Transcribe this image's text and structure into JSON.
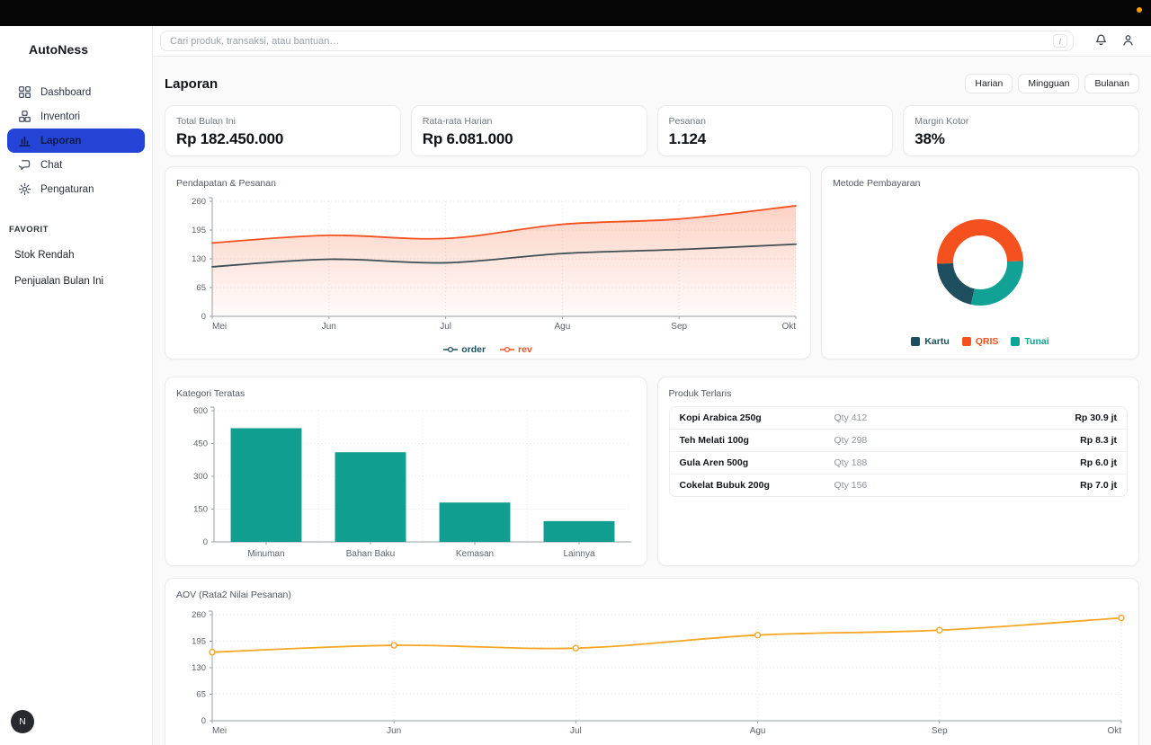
{
  "topbar": {
    "status_dot_color": "#ff9c07"
  },
  "sidebar": {
    "brand": "AutoNess",
    "items": [
      {
        "label": "Dashboard",
        "icon": "dashboard-icon",
        "active": false
      },
      {
        "label": "Inventori",
        "icon": "inventory-icon",
        "active": false
      },
      {
        "label": "Laporan",
        "icon": "report-chart-icon",
        "active": true
      },
      {
        "label": "Chat",
        "icon": "chat-icon",
        "active": false
      },
      {
        "label": "Pengaturan",
        "icon": "gear-icon",
        "active": false
      }
    ],
    "favorites_title": "FAVORIT",
    "favorites": [
      {
        "label": "Stok Rendah"
      },
      {
        "label": "Penjualan Bulan Ini"
      }
    ],
    "avatar_letter": "N"
  },
  "header": {
    "search_placeholder": "Cari produk, transaksi, atau bantuan…",
    "shortcut_key": "/"
  },
  "page": {
    "title": "Laporan",
    "period_buttons": [
      "Harian",
      "Mingguan",
      "Bulanan"
    ]
  },
  "kpis": [
    {
      "label": "Total Bulan Ini",
      "value": "Rp 182.450.000"
    },
    {
      "label": "Rata-rata Harian",
      "value": "Rp 6.081.000"
    },
    {
      "label": "Pesanan",
      "value": "1.124"
    },
    {
      "label": "Margin Kotor",
      "value": "38%"
    }
  ],
  "products": {
    "title": "Produk Terlaris",
    "rows": [
      {
        "name": "Kopi Arabica 250g",
        "qty": "Qty 412",
        "value": "Rp 30.9 jt"
      },
      {
        "name": "Teh Melati 100g",
        "qty": "Qty 298",
        "value": "Rp 8.3 jt"
      },
      {
        "name": "Gula Aren 500g",
        "qty": "Qty 188",
        "value": "Rp 6.0 jt"
      },
      {
        "name": "Cokelat Bubuk 200g",
        "qty": "Qty 156",
        "value": "Rp 7.0 jt"
      }
    ]
  },
  "chart_data": [
    {
      "id": "revenue_orders",
      "type": "area",
      "title": "Pendapatan & Pesanan",
      "x": [
        "Mei",
        "Jun",
        "Jul",
        "Agu",
        "Sep",
        "Okt"
      ],
      "yticks": [
        0,
        65,
        130,
        195,
        260
      ],
      "ylim": [
        0,
        260
      ],
      "grid": true,
      "legend_position": "bottom",
      "series": [
        {
          "name": "order",
          "color": "#1f4e5f",
          "values": [
            112,
            129,
            121,
            142,
            151,
            163
          ],
          "area": false,
          "markers": false
        },
        {
          "name": "rev",
          "color": "#f4511e",
          "values": [
            166,
            183,
            176,
            208,
            220,
            250
          ],
          "area": true,
          "markers": false
        }
      ]
    },
    {
      "id": "payment_methods",
      "type": "pie",
      "title": "Metode Pembayaran",
      "labels": [
        "Kartu",
        "QRIS",
        "Tunai"
      ],
      "values": [
        21,
        50,
        29
      ],
      "colors": [
        "#1f4e5f",
        "#f4511e",
        "#12a195"
      ],
      "donut": true,
      "start_angle_deg": 268,
      "draw_order": [
        1,
        2,
        0
      ],
      "legend_position": "bottom"
    },
    {
      "id": "top_categories",
      "type": "bar",
      "title": "Kategori Teratas",
      "categories": [
        "Minuman",
        "Bahan Baku",
        "Kemasan",
        "Lainnya"
      ],
      "values": [
        520,
        410,
        180,
        95
      ],
      "yticks": [
        0,
        150,
        300,
        450,
        600
      ],
      "ylim": [
        0,
        600
      ],
      "grid": true,
      "color": "#0f9e8f"
    },
    {
      "id": "aov",
      "type": "line",
      "title": "AOV (Rata2 Nilai Pesanan)",
      "x": [
        "Mei",
        "Jun",
        "Jul",
        "Agu",
        "Sep",
        "Okt"
      ],
      "yticks": [
        0,
        65,
        130,
        195,
        260
      ],
      "ylim": [
        0,
        260
      ],
      "grid": true,
      "series": [
        {
          "name": "aov",
          "color": "#f5a623",
          "values": [
            168,
            185,
            178,
            210,
            222,
            252
          ],
          "area": false,
          "markers": true
        }
      ]
    }
  ]
}
